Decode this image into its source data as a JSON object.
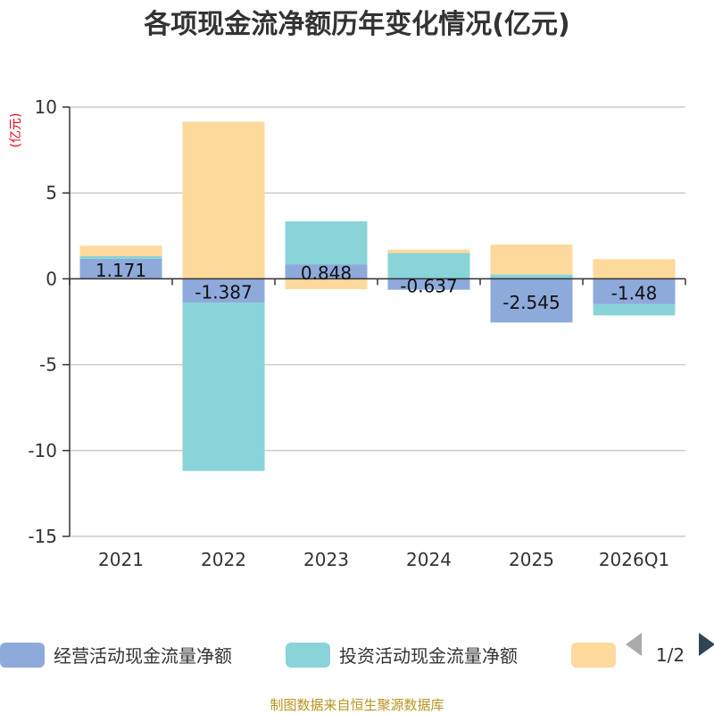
{
  "chart_data": {
    "type": "bar",
    "stacked": true,
    "title": "各项现金流净额历年变化情况(亿元)",
    "unit_label": "(亿元)",
    "categories": [
      "2021",
      "2022",
      "2023",
      "2024",
      "2025",
      "2026Q1"
    ],
    "ylim": [
      -15,
      10
    ],
    "yticks": [
      10,
      5,
      0,
      -5,
      -10,
      -15
    ],
    "grid": true,
    "series": [
      {
        "name": "经营活动现金流量净额",
        "color": "#8eaadb",
        "values": [
          1.171,
          -1.387,
          0.848,
          -0.637,
          -2.545,
          -1.48
        ],
        "labels": [
          "1.171",
          "-1.387",
          "0.848",
          "-0.637",
          "-2.545",
          "-1.48"
        ]
      },
      {
        "name": "投资活动现金流量净额",
        "color": "#88d4d8",
        "values": [
          0.15,
          -9.8,
          2.5,
          1.5,
          0.25,
          -0.65
        ]
      },
      {
        "name": "",
        "color": "#fdd99b",
        "values": [
          0.6,
          9.15,
          -0.6,
          0.2,
          1.75,
          1.15
        ]
      }
    ]
  },
  "legend": {
    "items": [
      {
        "label": "经营活动现金流量净额",
        "color": "#8eaadb"
      },
      {
        "label": "投资活动现金流量净额",
        "color": "#88d4d8"
      },
      {
        "label": "",
        "color": "#fdd99b"
      }
    ],
    "page_indicator": "1/2",
    "prev_icon": "triangle-left-icon",
    "next_icon": "triangle-right-icon"
  },
  "footer": {
    "source": "制图数据来自恒生聚源数据库"
  }
}
